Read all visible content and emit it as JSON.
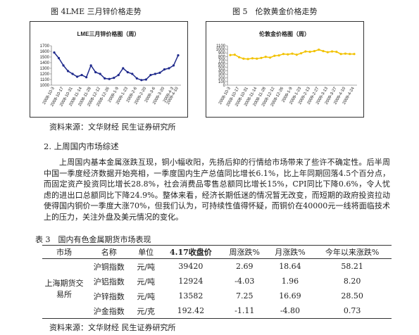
{
  "figure_captions": [
    "图 4LME 三月锌价格走势",
    "图 5　伦敦黄金价格走势"
  ],
  "chart_data": [
    {
      "type": "line",
      "title": "LME三月锌价格图（周）",
      "color": "#1f2a8c",
      "marker": true,
      "x": [
        "2008-10-3",
        null,
        "2008-10-17",
        null,
        "2008-10-31",
        null,
        "2008-11-14",
        null,
        "2008-11-28",
        null,
        "2008-12-12",
        null,
        "2008-12-26",
        null,
        "2009-1-9",
        null,
        "2009-1-23",
        null,
        "2009-2-6",
        null,
        "2009-2-20",
        null,
        "2009-3-6",
        null,
        "2009-3-20",
        null,
        "2009-4-3",
        "2009-4-10"
      ],
      "values": [
        1580,
        1480,
        1350,
        1250,
        1200,
        1150,
        1180,
        1140,
        1350,
        1230,
        1200,
        1120,
        1110,
        1130,
        1180,
        1300,
        1230,
        1200,
        1120,
        1090,
        1100,
        1180,
        1200,
        1220,
        1280,
        1300,
        1350,
        1530
      ],
      "ylim": [
        1000,
        1700
      ],
      "yticks": [
        1000,
        1100,
        1200,
        1300,
        1400,
        1500,
        1600,
        1700
      ]
    },
    {
      "type": "line",
      "title": "伦敦金价格图（周）",
      "color": "#f2c200",
      "marker": true,
      "x": [
        "2008-10-3",
        null,
        "2008-10-17",
        null,
        "2008-10-31",
        null,
        "2008-11-14",
        null,
        "2008-11-28",
        null,
        "2008-12-12",
        null,
        "2008-12-26",
        null,
        "2009-1-9",
        null,
        "2009-1-23",
        null,
        "2009-2-13",
        null,
        "2009-2-27",
        null,
        "2009-3-13",
        null,
        "2009-3-27",
        null,
        "2009-4-10",
        null,
        "2009-4-24"
      ],
      "values": [
        840,
        850,
        780,
        740,
        730,
        750,
        740,
        760,
        790,
        770,
        820,
        830,
        870,
        860,
        880,
        850,
        890,
        940,
        930,
        950,
        990,
        950,
        920,
        940,
        930,
        870,
        880,
        870,
        870
      ],
      "ylim": [
        0,
        1100
      ],
      "yticks": [
        0,
        100,
        200,
        300,
        400,
        500,
        600,
        700,
        800,
        900,
        1000,
        1100
      ]
    }
  ],
  "source_1": "资料来源：文华财经 民生证券研究所",
  "section_heading": "2. 上周国内市场综述",
  "paragraph": "上周国内基本金属涨跌互现，铜小幅收阳，先扬后抑的行情给市场带来了些许不确定性。后半周中国一季度经济数据开始亮相，一季度国内生产总值同比增长6.1%，比上年同期回落4.5个百分点，而固定资产投资同比增长28.8%，社会消费品零售总额同比增长15%，CPI同比下降0.6%，令人忧虑的进出口总额同比下降24.9%。整体来看，经济长期低迷的情况暂无改变，而短期的政府投资拉动使得国内铜价一季度大涨70%，但我们认为，可持续性值得怀疑，而铜价在40000元一线将面临技术上的压力，关注外盘及美元情况的变化。",
  "table": {
    "caption": "表 3　国内有色金属期货市场表现",
    "header": [
      "市场",
      "名称",
      "单位",
      "4.17收盘价",
      "周涨跌%",
      "月涨跌%",
      "今年以来涨跌%"
    ],
    "market": "上海期货交易所",
    "rows": [
      [
        "沪铜指数",
        "元/吨",
        "39420",
        "2.69",
        "18.64",
        "58.21"
      ],
      [
        "沪铝指数",
        "元/吨",
        "12924",
        "-4.03",
        "1.96",
        "8.20"
      ],
      [
        "沪锌指数",
        "元/吨",
        "13582",
        "7.25",
        "16.69",
        "28.50"
      ],
      [
        "沪金指数",
        "元/克",
        "192.42",
        "-1.11",
        "-4.80",
        "0.73"
      ]
    ]
  },
  "source_2": "资料来源：文华财经 民生证券研究所"
}
